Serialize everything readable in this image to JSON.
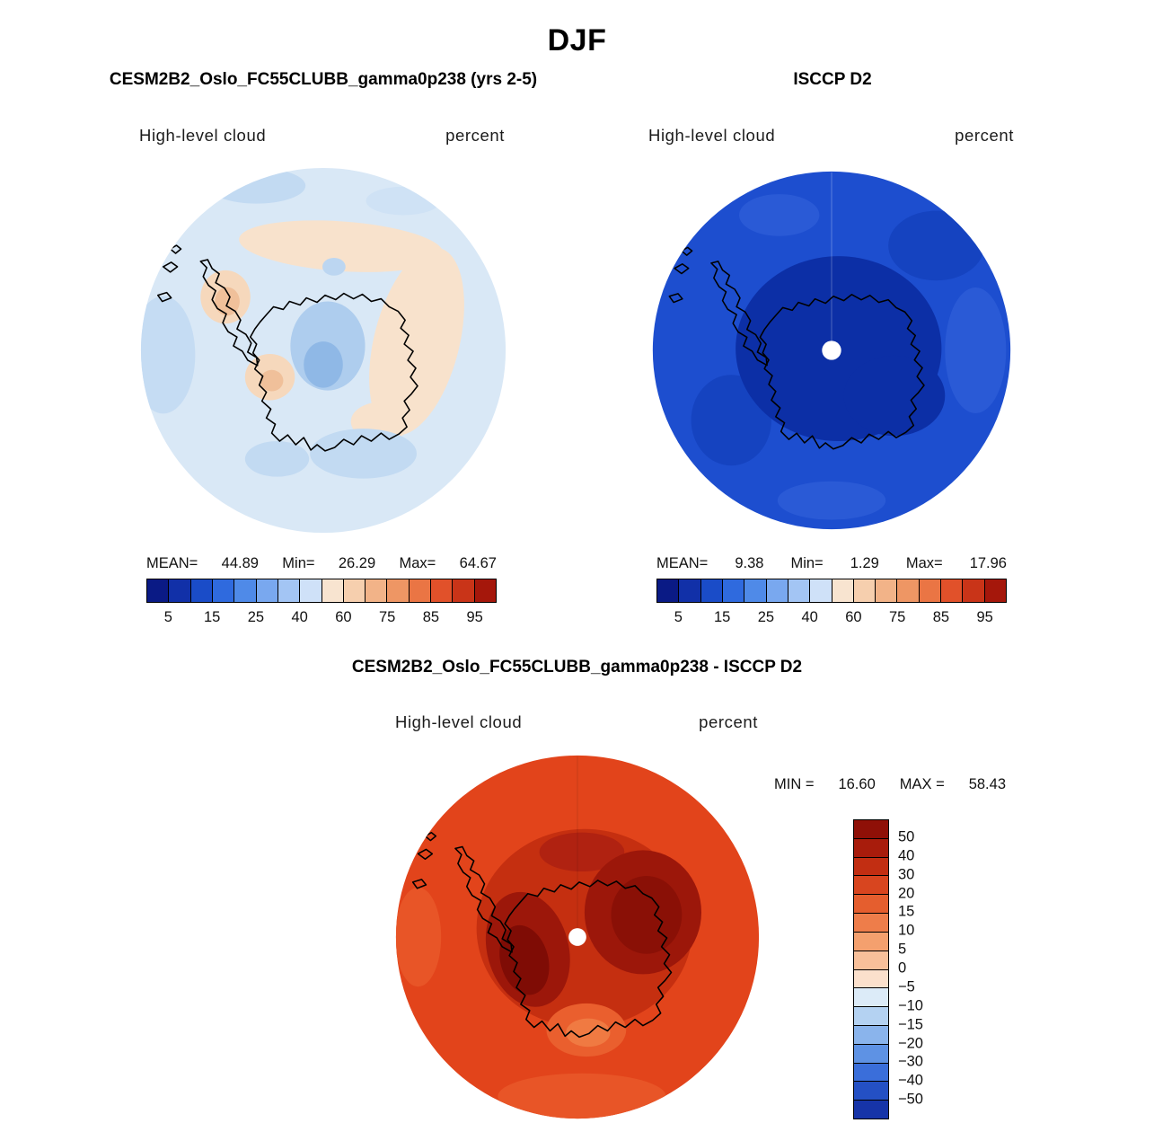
{
  "title": "DJF",
  "panels": {
    "model": {
      "title": "CESM2B2_Oslo_FC55CLUBB_gamma0p238 (yrs 2-5)",
      "field_label": "High-level cloud",
      "units_label": "percent",
      "stats": {
        "mean_label": "MEAN=",
        "mean": "44.89",
        "min_label": "Min=",
        "min": "26.29",
        "max_label": "Max=",
        "max": "64.67"
      }
    },
    "obs": {
      "title": "ISCCP D2",
      "field_label": "High-level cloud",
      "units_label": "percent",
      "stats": {
        "mean_label": "MEAN=",
        "mean": "9.38",
        "min_label": "Min=",
        "min": "1.29",
        "max_label": "Max=",
        "max": "17.96"
      }
    },
    "diff": {
      "title": "CESM2B2_Oslo_FC55CLUBB_gamma0p238 - ISCCP D2",
      "field_label": "High-level cloud",
      "units_label": "percent",
      "stats": {
        "min_label": "MIN =",
        "min": "16.60",
        "max_label": "MAX =",
        "max": "58.43"
      }
    }
  },
  "colorbar_h": {
    "colors": [
      "#0a1a85",
      "#1130a8",
      "#1a4cc8",
      "#2f6ade",
      "#4f8ae8",
      "#79a8ef",
      "#a3c5f4",
      "#cfe1f8",
      "#f8e4d0",
      "#f6cfae",
      "#f2b388",
      "#ee9664",
      "#ea7544",
      "#e1512a",
      "#c93418",
      "#a5170b"
    ],
    "tick_labels": [
      "5",
      "15",
      "25",
      "40",
      "60",
      "75",
      "85",
      "95"
    ]
  },
  "colorbar_v": {
    "colors": [
      "#8f1007",
      "#a81c0c",
      "#c22e12",
      "#d8451f",
      "#e55e2e",
      "#ee7d4a",
      "#f4a06e",
      "#f8c09a",
      "#fbe0cc",
      "#dcebf8",
      "#b4d2f2",
      "#8ab4ec",
      "#5e92e4",
      "#3a6eda",
      "#2450c4",
      "#1634a8"
    ],
    "tick_labels": [
      "50",
      "40",
      "30",
      "20",
      "15",
      "10",
      "5",
      "0",
      "−5",
      "−10",
      "−15",
      "−20",
      "−30",
      "−40",
      "−50"
    ]
  },
  "colors": {
    "model_base": "#d9e8f6",
    "obs_base": "#1d4ecf",
    "obs_interior": "#0c2fa6",
    "diff_base": "#e2441b",
    "diff_shade": "#c52f10",
    "diff_dark": "#9c170a",
    "pole_dot": "#ffffff",
    "coastline": "#000000"
  },
  "chart_data": [
    {
      "type": "heatmap",
      "subtype": "filled-contour-map",
      "projection": "south polar stereographic",
      "season": "DJF",
      "title": "CESM2B2_Oslo_FC55CLUBB_gamma0p238 (yrs 2-5)",
      "variable": "High-level cloud",
      "units": "percent",
      "stats": {
        "mean": 44.89,
        "min": 26.29,
        "max": 64.67
      },
      "contour_levels": [
        5,
        10,
        15,
        20,
        25,
        30,
        40,
        50,
        60,
        70,
        75,
        80,
        85,
        90,
        95
      ],
      "colorbar_tick_labels": [
        5,
        15,
        25,
        40,
        60,
        75,
        85,
        95
      ],
      "legend_position": "bottom",
      "description": "Mostly pale blue values 30-50 with light orange patches around the Antarctic coast and blue patches over West Antarctica"
    },
    {
      "type": "heatmap",
      "subtype": "filled-contour-map",
      "projection": "south polar stereographic",
      "season": "DJF",
      "title": "ISCCP D2",
      "variable": "High-level cloud",
      "units": "percent",
      "stats": {
        "mean": 9.38,
        "min": 1.29,
        "max": 17.96
      },
      "contour_levels": [
        5,
        10,
        15,
        20,
        25,
        30,
        40,
        50,
        60,
        70,
        75,
        80,
        85,
        90,
        95
      ],
      "colorbar_tick_labels": [
        5,
        15,
        25,
        40,
        60,
        75,
        85,
        95
      ],
      "legend_position": "bottom",
      "description": "Uniform dark blue field (5-15 percent), darkest navy over the Antarctic continent, white dot at the pole"
    },
    {
      "type": "heatmap",
      "subtype": "filled-contour-difference-map",
      "projection": "south polar stereographic",
      "season": "DJF",
      "title": "CESM2B2_Oslo_FC55CLUBB_gamma0p238 - ISCCP D2",
      "variable": "High-level cloud",
      "units": "percent",
      "stats": {
        "min": 16.6,
        "max": 58.43
      },
      "contour_levels": [
        -50,
        -40,
        -30,
        -20,
        -15,
        -10,
        -5,
        0,
        5,
        10,
        15,
        20,
        30,
        40,
        50
      ],
      "colorbar_tick_labels": [
        50,
        40,
        30,
        20,
        15,
        10,
        5,
        0,
        -5,
        -10,
        -15,
        -20,
        -30,
        -40,
        -50
      ],
      "legend_position": "right",
      "description": "Entirely positive differences: orange-red ring 20-30, darker red 30-40 over the continent, dark maroon maxima 40-50+ over West and East Antarctica, white dot at the pole"
    }
  ]
}
